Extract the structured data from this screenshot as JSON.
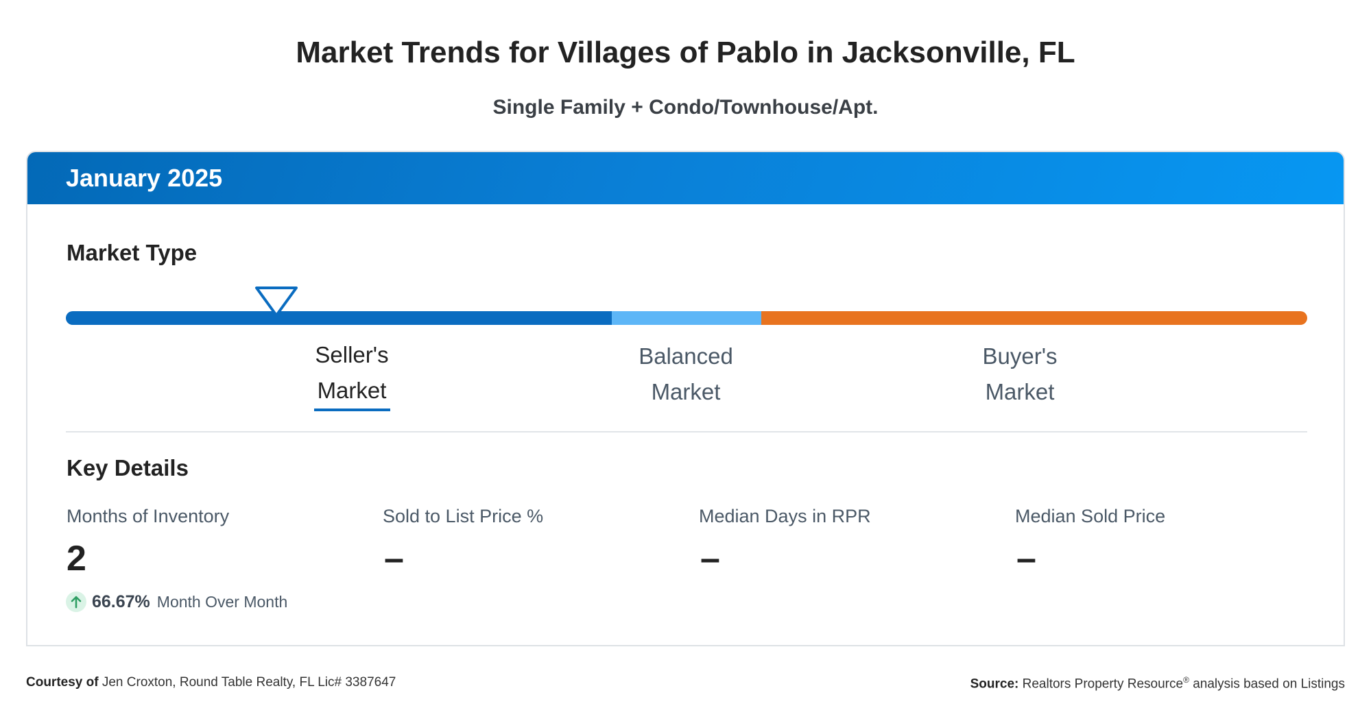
{
  "title": "Market Trends for Villages of Pablo in Jacksonville, FL",
  "subtitle": "Single Family + Condo/Townhouse/Apt.",
  "card": {
    "period": "January 2025",
    "market_type": {
      "heading": "Market Type",
      "segments": [
        {
          "line1": "Seller's",
          "line2": "Market",
          "color": "#0a6cc0",
          "active": true
        },
        {
          "line1": "Balanced",
          "line2": "Market",
          "color": "#5db6f7",
          "active": false
        },
        {
          "line1": "Buyer's",
          "line2": "Market",
          "color": "#e8731f",
          "active": false
        }
      ],
      "marker_icon": "triangle-down-marker-icon"
    },
    "key_details": {
      "heading": "Key Details",
      "metrics": [
        {
          "label": "Months of Inventory",
          "value": "2"
        },
        {
          "label": "Sold to List Price %",
          "value": "–"
        },
        {
          "label": "Median Days in RPR",
          "value": "–"
        },
        {
          "label": "Median Sold Price",
          "value": "–"
        }
      ],
      "change": {
        "icon": "arrow-up-icon",
        "percent": "66.67%",
        "text": "Month Over Month",
        "color": "#2e9e63"
      }
    }
  },
  "footer": {
    "courtesy_label": "Courtesy of",
    "courtesy_text": "Jen Croxton, Round Table Realty, FL Lic# 3387647",
    "source_label": "Source:",
    "source_text": "Realtors Property Resource",
    "source_mark": "®",
    "source_suffix": "analysis based on Listings"
  }
}
